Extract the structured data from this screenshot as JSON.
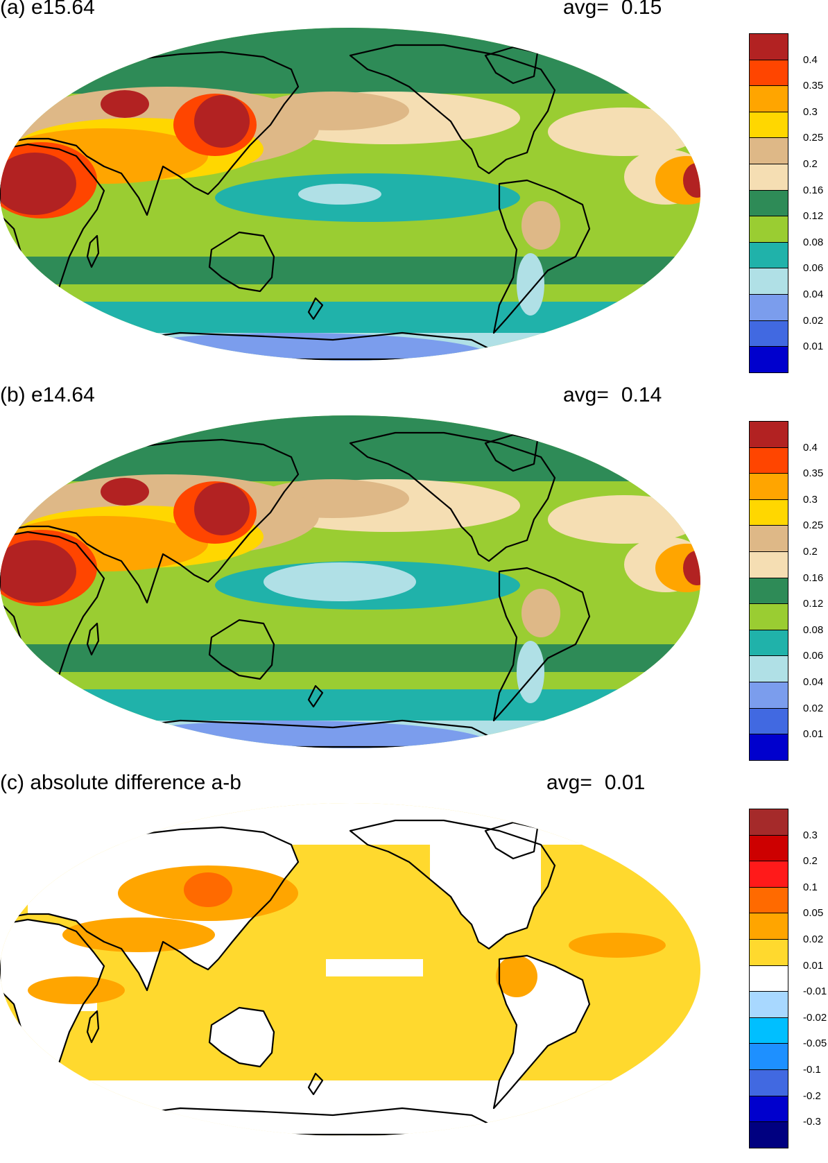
{
  "panels": [
    {
      "title": "(a) e15.64",
      "avg_label": "avg=",
      "avg_value": "0.15",
      "scheme": "a",
      "colorbar": {
        "colors": [
          "#b22222",
          "#ff4500",
          "#ffa500",
          "#ffd700",
          "#deb887",
          "#f5deb3",
          "#2e8b57",
          "#9acd32",
          "#20b2aa",
          "#b0e0e6",
          "#7b9ded",
          "#4169e1",
          "#0000cd"
        ],
        "labels": [
          "0.4",
          "0.35",
          "0.3",
          "0.25",
          "0.2",
          "0.16",
          "0.12",
          "0.08",
          "0.06",
          "0.04",
          "0.02",
          "0.01"
        ]
      }
    },
    {
      "title": "(b) e14.64",
      "avg_label": "avg=",
      "avg_value": "0.14",
      "scheme": "b",
      "colorbar": {
        "colors": [
          "#b22222",
          "#ff4500",
          "#ffa500",
          "#ffd700",
          "#deb887",
          "#f5deb3",
          "#2e8b57",
          "#9acd32",
          "#20b2aa",
          "#b0e0e6",
          "#7b9ded",
          "#4169e1",
          "#0000cd"
        ],
        "labels": [
          "0.4",
          "0.35",
          "0.3",
          "0.25",
          "0.2",
          "0.16",
          "0.12",
          "0.08",
          "0.06",
          "0.04",
          "0.02",
          "0.01"
        ]
      }
    },
    {
      "title": "(c) absolute difference a-b",
      "avg_label": "avg=",
      "avg_value": "0.01",
      "scheme": "c",
      "colorbar": {
        "colors": [
          "#a52a2a",
          "#cd0000",
          "#ff1a1a",
          "#ff6a00",
          "#ffa500",
          "#ffd92e",
          "#ffffff",
          "#a8d8ff",
          "#00bfff",
          "#1e90ff",
          "#4169e1",
          "#0000cd",
          "#000080"
        ],
        "labels": [
          "0.3",
          "0.2",
          "0.1",
          "0.05",
          "0.02",
          "0.01",
          "-0.01",
          "-0.02",
          "-0.05",
          "-0.1",
          "-0.2",
          "-0.3"
        ]
      }
    }
  ]
}
